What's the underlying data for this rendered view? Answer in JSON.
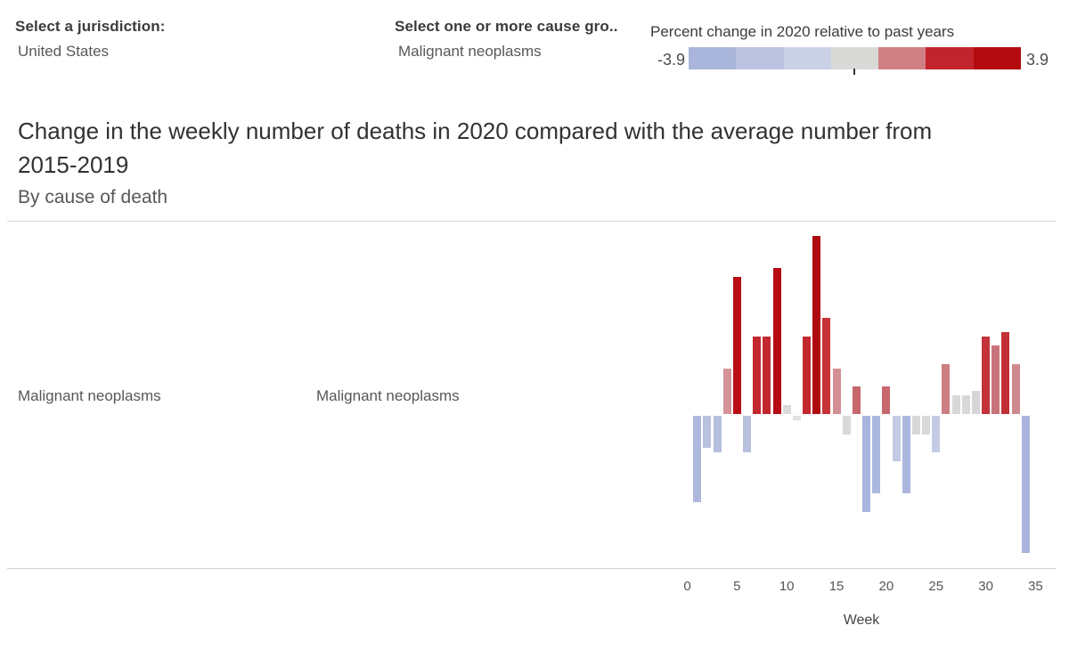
{
  "header": {
    "jurisdiction": {
      "label": "Select a jurisdiction:",
      "value": "United States"
    },
    "cause": {
      "label": "Select one or more cause gro..",
      "value": "Malignant neoplasms"
    },
    "legend": {
      "title": "Percent change in 2020 relative to past years",
      "min_label": "-3.9",
      "max_label": "3.9",
      "segments": [
        "#aab5db",
        "#bbc3e1",
        "#cad0e6",
        "#d9dad7",
        "#d08085",
        "#c1242c",
        "#b30b10"
      ]
    }
  },
  "title": {
    "line1": "Change in the weekly number of deaths in 2020 compared with the average number from",
    "line2": "2015-2019",
    "subtitle": "By cause of death"
  },
  "rows": {
    "group_label": "Malignant neoplasms",
    "subgroup_label": "Malignant neoplasms"
  },
  "chart_data": {
    "type": "bar",
    "title": "Change in the weekly number of deaths in 2020 compared with the average number from 2015-2019",
    "xlabel": "Week",
    "ylabel": "Percent change in 2020 relative to past years",
    "x_ticks": [
      0,
      5,
      10,
      15,
      20,
      25,
      30,
      35
    ],
    "xlim": [
      0,
      35
    ],
    "ylim": [
      -3.9,
      3.9
    ],
    "grid": false,
    "legend_position": "top-right",
    "series": [
      {
        "name": "Malignant neoplasms",
        "points": [
          {
            "week": 1,
            "value": -1.9,
            "color": "#aeb8dc"
          },
          {
            "week": 2,
            "value": -0.7,
            "color": "#b9c1e1"
          },
          {
            "week": 3,
            "value": -0.8,
            "color": "#b6bfdf"
          },
          {
            "week": 4,
            "value": 1.0,
            "color": "#d49499"
          },
          {
            "week": 5,
            "value": 3.0,
            "color": "#b90e15"
          },
          {
            "week": 6,
            "value": -0.8,
            "color": "#b8c0e0"
          },
          {
            "week": 7,
            "value": 1.7,
            "color": "#c2282e"
          },
          {
            "week": 8,
            "value": 1.7,
            "color": "#c2282e"
          },
          {
            "week": 9,
            "value": 3.2,
            "color": "#b50d13"
          },
          {
            "week": 10,
            "value": 0.2,
            "color": "#dadada"
          },
          {
            "week": 11,
            "value": -0.1,
            "color": "#e2e2e2"
          },
          {
            "week": 12,
            "value": 1.7,
            "color": "#c2282e"
          },
          {
            "week": 13,
            "value": 3.9,
            "color": "#ae0c10"
          },
          {
            "week": 14,
            "value": 2.1,
            "color": "#c53338"
          },
          {
            "week": 15,
            "value": 1.0,
            "color": "#d29095"
          },
          {
            "week": 16,
            "value": -0.4,
            "color": "#d9d9d9"
          },
          {
            "week": 17,
            "value": 0.6,
            "color": "#c6686e"
          },
          {
            "week": 18,
            "value": -2.1,
            "color": "#a9b5dc"
          },
          {
            "week": 19,
            "value": -1.7,
            "color": "#abb7dd"
          },
          {
            "week": 20,
            "value": 0.6,
            "color": "#c6686e"
          },
          {
            "week": 21,
            "value": -1.0,
            "color": "#c3cae3"
          },
          {
            "week": 22,
            "value": -1.7,
            "color": "#abb7dd"
          },
          {
            "week": 23,
            "value": -0.4,
            "color": "#d8d8d8"
          },
          {
            "week": 24,
            "value": -0.4,
            "color": "#d8d8d8"
          },
          {
            "week": 25,
            "value": -0.8,
            "color": "#c4cbe4"
          },
          {
            "week": 26,
            "value": 1.1,
            "color": "#cb7e84"
          },
          {
            "week": 27,
            "value": 0.4,
            "color": "#d8d8d8"
          },
          {
            "week": 28,
            "value": 0.4,
            "color": "#d8d8d8"
          },
          {
            "week": 29,
            "value": 0.5,
            "color": "#d6d6d6"
          },
          {
            "week": 30,
            "value": 1.7,
            "color": "#c4333a"
          },
          {
            "week": 31,
            "value": 1.5,
            "color": "#c8737a"
          },
          {
            "week": 32,
            "value": 1.8,
            "color": "#c23036"
          },
          {
            "week": 33,
            "value": 1.1,
            "color": "#cf8a90"
          },
          {
            "week": 34,
            "value": -3.0,
            "color": "#a9b5dc"
          }
        ]
      }
    ]
  }
}
